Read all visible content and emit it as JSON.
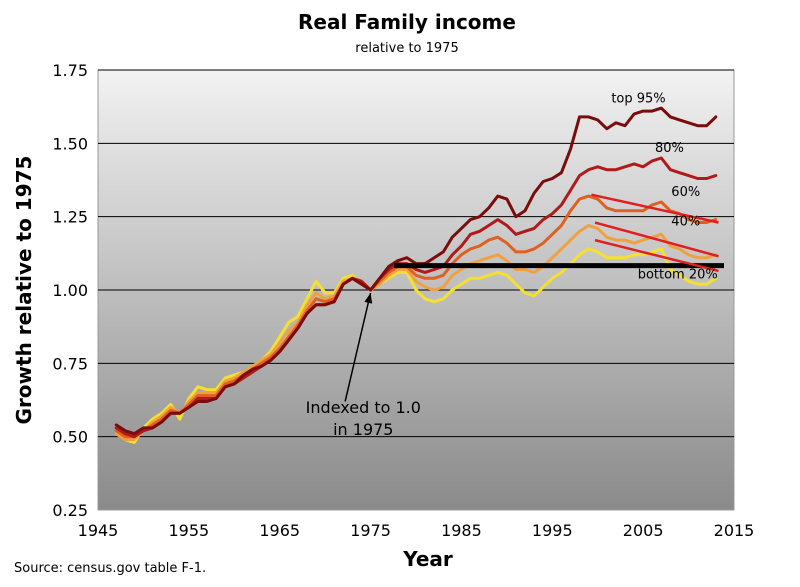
{
  "chart_data": {
    "type": "line",
    "title": "Real Family income",
    "subtitle": "relative to 1975",
    "xlabel": "Year",
    "ylabel": "Growth relative to 1975",
    "xlim": [
      1945,
      2015
    ],
    "ylim": [
      0.25,
      1.75
    ],
    "xticks": [
      1945,
      1955,
      1965,
      1975,
      1985,
      1995,
      2005,
      2015
    ],
    "yticks": [
      0.25,
      0.5,
      0.75,
      1.0,
      1.25,
      1.5,
      1.75
    ],
    "xtick_labels": [
      "1945",
      "1955",
      "1965",
      "1975",
      "1985",
      "1995",
      "2005",
      "2015"
    ],
    "ytick_labels": [
      "0.25",
      "0.50",
      "0.75",
      "1.00",
      "1.25",
      "1.50",
      "1.75"
    ],
    "grid": "horizontal",
    "background": "vertical gradient, light gray to dark gray",
    "colors": {
      "top95": "#7a0c0c",
      "p80": "#b01a1a",
      "p60": "#e06020",
      "p40": "#f0a040",
      "bottom20": "#f5e030",
      "trend": "#e02020",
      "baseline": "#000000"
    },
    "series": [
      {
        "name": "top 95%",
        "color_key": "top95",
        "x": [
          1947,
          1948,
          1949,
          1950,
          1951,
          1952,
          1953,
          1954,
          1955,
          1956,
          1957,
          1958,
          1959,
          1960,
          1961,
          1962,
          1963,
          1964,
          1965,
          1966,
          1967,
          1968,
          1969,
          1970,
          1971,
          1972,
          1973,
          1974,
          1975,
          1976,
          1977,
          1978,
          1979,
          1980,
          1981,
          1982,
          1983,
          1984,
          1985,
          1986,
          1987,
          1988,
          1989,
          1990,
          1991,
          1992,
          1993,
          1994,
          1995,
          1996,
          1997,
          1998,
          1999,
          2000,
          2001,
          2002,
          2003,
          2004,
          2005,
          2006,
          2007,
          2008,
          2009,
          2010,
          2011,
          2012,
          2013
        ],
        "values": [
          0.54,
          0.52,
          0.51,
          0.53,
          0.53,
          0.55,
          0.58,
          0.58,
          0.6,
          0.62,
          0.62,
          0.63,
          0.67,
          0.68,
          0.71,
          0.73,
          0.74,
          0.76,
          0.79,
          0.83,
          0.87,
          0.92,
          0.95,
          0.95,
          0.96,
          1.02,
          1.04,
          1.02,
          1.0,
          1.04,
          1.08,
          1.1,
          1.11,
          1.09,
          1.09,
          1.11,
          1.13,
          1.18,
          1.21,
          1.24,
          1.25,
          1.28,
          1.32,
          1.31,
          1.25,
          1.27,
          1.33,
          1.37,
          1.38,
          1.4,
          1.48,
          1.59,
          1.59,
          1.58,
          1.55,
          1.57,
          1.56,
          1.6,
          1.61,
          1.61,
          1.62,
          1.59,
          1.58,
          1.57,
          1.56,
          1.56,
          1.59
        ]
      },
      {
        "name": "80%",
        "color_key": "p80",
        "x": [
          1947,
          1948,
          1949,
          1950,
          1951,
          1952,
          1953,
          1954,
          1955,
          1956,
          1957,
          1958,
          1959,
          1960,
          1961,
          1962,
          1963,
          1964,
          1965,
          1966,
          1967,
          1968,
          1969,
          1970,
          1971,
          1972,
          1973,
          1974,
          1975,
          1976,
          1977,
          1978,
          1979,
          1980,
          1981,
          1982,
          1983,
          1984,
          1985,
          1986,
          1987,
          1988,
          1989,
          1990,
          1991,
          1992,
          1993,
          1994,
          1995,
          1996,
          1997,
          1998,
          1999,
          2000,
          2001,
          2002,
          2003,
          2004,
          2005,
          2006,
          2007,
          2008,
          2009,
          2010,
          2011,
          2012,
          2013
        ],
        "values": [
          0.53,
          0.51,
          0.5,
          0.52,
          0.53,
          0.55,
          0.58,
          0.58,
          0.6,
          0.63,
          0.63,
          0.63,
          0.67,
          0.68,
          0.7,
          0.72,
          0.74,
          0.76,
          0.79,
          0.83,
          0.87,
          0.92,
          0.95,
          0.95,
          0.96,
          1.02,
          1.04,
          1.03,
          1.0,
          1.04,
          1.07,
          1.09,
          1.09,
          1.07,
          1.06,
          1.07,
          1.08,
          1.12,
          1.15,
          1.19,
          1.2,
          1.22,
          1.24,
          1.22,
          1.19,
          1.2,
          1.21,
          1.24,
          1.26,
          1.29,
          1.34,
          1.39,
          1.41,
          1.42,
          1.41,
          1.41,
          1.42,
          1.43,
          1.42,
          1.44,
          1.45,
          1.41,
          1.4,
          1.39,
          1.38,
          1.38,
          1.39
        ]
      },
      {
        "name": "60%",
        "color_key": "p60",
        "x": [
          1947,
          1948,
          1949,
          1950,
          1951,
          1952,
          1953,
          1954,
          1955,
          1956,
          1957,
          1958,
          1959,
          1960,
          1961,
          1962,
          1963,
          1964,
          1965,
          1966,
          1967,
          1968,
          1969,
          1970,
          1971,
          1972,
          1973,
          1974,
          1975,
          1976,
          1977,
          1978,
          1979,
          1980,
          1981,
          1982,
          1983,
          1984,
          1985,
          1986,
          1987,
          1988,
          1989,
          1990,
          1991,
          1992,
          1993,
          1994,
          1995,
          1996,
          1997,
          1998,
          1999,
          2000,
          2001,
          2002,
          2003,
          2004,
          2005,
          2006,
          2007,
          2008,
          2009,
          2010,
          2011,
          2012,
          2013
        ],
        "values": [
          0.52,
          0.5,
          0.5,
          0.52,
          0.54,
          0.56,
          0.59,
          0.58,
          0.61,
          0.64,
          0.64,
          0.64,
          0.68,
          0.69,
          0.71,
          0.73,
          0.75,
          0.77,
          0.8,
          0.84,
          0.88,
          0.93,
          0.97,
          0.96,
          0.97,
          1.02,
          1.04,
          1.02,
          1.0,
          1.03,
          1.06,
          1.08,
          1.08,
          1.05,
          1.04,
          1.04,
          1.05,
          1.09,
          1.12,
          1.14,
          1.15,
          1.17,
          1.18,
          1.16,
          1.13,
          1.13,
          1.14,
          1.16,
          1.19,
          1.22,
          1.27,
          1.31,
          1.32,
          1.31,
          1.28,
          1.27,
          1.27,
          1.27,
          1.27,
          1.29,
          1.3,
          1.27,
          1.26,
          1.24,
          1.23,
          1.23,
          1.24
        ]
      },
      {
        "name": "40%",
        "color_key": "p40",
        "x": [
          1947,
          1948,
          1949,
          1950,
          1951,
          1952,
          1953,
          1954,
          1955,
          1956,
          1957,
          1958,
          1959,
          1960,
          1961,
          1962,
          1963,
          1964,
          1965,
          1966,
          1967,
          1968,
          1969,
          1970,
          1971,
          1972,
          1973,
          1974,
          1975,
          1976,
          1977,
          1978,
          1979,
          1980,
          1981,
          1982,
          1983,
          1984,
          1985,
          1986,
          1987,
          1988,
          1989,
          1990,
          1991,
          1992,
          1993,
          1994,
          1995,
          1996,
          1997,
          1998,
          1999,
          2000,
          2001,
          2002,
          2003,
          2004,
          2005,
          2006,
          2007,
          2008,
          2009,
          2010,
          2011,
          2012,
          2013
        ],
        "values": [
          0.51,
          0.49,
          0.49,
          0.52,
          0.55,
          0.57,
          0.6,
          0.58,
          0.62,
          0.65,
          0.65,
          0.65,
          0.69,
          0.7,
          0.72,
          0.74,
          0.76,
          0.78,
          0.82,
          0.86,
          0.89,
          0.95,
          0.99,
          0.97,
          0.98,
          1.03,
          1.04,
          1.02,
          1.0,
          1.02,
          1.05,
          1.07,
          1.07,
          1.03,
          1.01,
          1.0,
          1.01,
          1.05,
          1.07,
          1.09,
          1.1,
          1.11,
          1.12,
          1.1,
          1.07,
          1.07,
          1.06,
          1.08,
          1.11,
          1.14,
          1.17,
          1.2,
          1.22,
          1.21,
          1.18,
          1.17,
          1.17,
          1.16,
          1.17,
          1.18,
          1.19,
          1.15,
          1.14,
          1.12,
          1.11,
          1.11,
          1.12
        ]
      },
      {
        "name": "bottom 20%",
        "color_key": "bottom20",
        "x": [
          1947,
          1948,
          1949,
          1950,
          1951,
          1952,
          1953,
          1954,
          1955,
          1956,
          1957,
          1958,
          1959,
          1960,
          1961,
          1962,
          1963,
          1964,
          1965,
          1966,
          1967,
          1968,
          1969,
          1970,
          1971,
          1972,
          1973,
          1974,
          1975,
          1976,
          1977,
          1978,
          1979,
          1980,
          1981,
          1982,
          1983,
          1984,
          1985,
          1986,
          1987,
          1988,
          1989,
          1990,
          1991,
          1992,
          1993,
          1994,
          1995,
          1996,
          1997,
          1998,
          1999,
          2000,
          2001,
          2002,
          2003,
          2004,
          2005,
          2006,
          2007,
          2008,
          2009,
          2010,
          2011,
          2012,
          2013
        ],
        "values": [
          0.51,
          0.49,
          0.48,
          0.53,
          0.56,
          0.58,
          0.61,
          0.56,
          0.63,
          0.67,
          0.66,
          0.66,
          0.7,
          0.71,
          0.72,
          0.74,
          0.76,
          0.79,
          0.84,
          0.89,
          0.91,
          0.97,
          1.03,
          0.99,
          0.99,
          1.04,
          1.05,
          1.02,
          1.0,
          1.02,
          1.04,
          1.06,
          1.06,
          1.0,
          0.97,
          0.96,
          0.97,
          1.0,
          1.02,
          1.04,
          1.04,
          1.05,
          1.06,
          1.05,
          1.02,
          0.99,
          0.98,
          1.01,
          1.04,
          1.06,
          1.09,
          1.12,
          1.14,
          1.13,
          1.11,
          1.11,
          1.11,
          1.12,
          1.12,
          1.13,
          1.14,
          1.07,
          1.05,
          1.03,
          1.02,
          1.02,
          1.04
        ]
      }
    ],
    "series_labels": [
      {
        "text": "top 95%",
        "x": 2001.5,
        "y": 1.64
      },
      {
        "text": "80%",
        "x": 2006.3,
        "y": 1.47
      },
      {
        "text": "60%",
        "x": 2008.1,
        "y": 1.32
      },
      {
        "text": "40%",
        "x": 2008.1,
        "y": 1.22
      },
      {
        "text": "bottom 20%",
        "x": 2004.4,
        "y": 1.04
      }
    ],
    "trend_lines": [
      {
        "x1": 1999.3,
        "y1": 1.325,
        "x2": 2013.3,
        "y2": 1.23
      },
      {
        "x1": 1999.7,
        "y1": 1.23,
        "x2": 2013.3,
        "y2": 1.115
      },
      {
        "x1": 1999.7,
        "y1": 1.17,
        "x2": 2013.3,
        "y2": 1.065
      }
    ],
    "baseline": {
      "x1": 1977.6,
      "x2": 2013.9,
      "y": 1.083
    },
    "annotation": {
      "lines": [
        "Indexed to 1.0",
        "in 1975"
      ],
      "arrow_to": {
        "x": 1975,
        "y": 1.0
      },
      "arrow_from": {
        "x": 1972.2,
        "y": 0.62
      },
      "text_anchor": {
        "x": 1974.2,
        "y": 0.58
      }
    }
  },
  "source": "Source: census.gov table F-1."
}
